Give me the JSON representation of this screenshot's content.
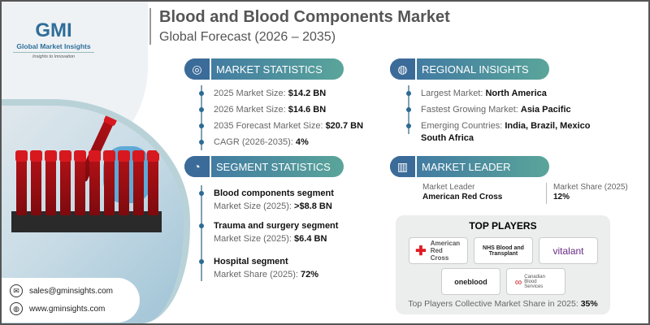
{
  "brand": {
    "logo_text": "GMI",
    "name": "Global Market Insights",
    "tagline": "Insights to Innovation"
  },
  "header": {
    "title": "Blood and Blood Components Market",
    "subtitle": "Global Forecast (2026 – 2035)"
  },
  "market_statistics": {
    "heading": "MARKET STATISTICS",
    "icon": "globe-chart-icon",
    "items": [
      {
        "label": "2025 Market Size: ",
        "value": "$14.2 BN"
      },
      {
        "label": "2026 Market Size: ",
        "value": "$14.6 BN"
      },
      {
        "label": "2035 Forecast Market Size: ",
        "value": "$20.7 BN"
      },
      {
        "label": "CAGR (2026-2035): ",
        "value": "4%"
      }
    ]
  },
  "segment_statistics": {
    "heading": "SEGMENT STATISTICS",
    "icon": "segment-chart-icon",
    "items": [
      {
        "name": "Blood components segment",
        "label": "Market Size (2025): ",
        "value": ">$8.8 BN"
      },
      {
        "name": "Trauma and surgery segment",
        "label": "Market Size (2025): ",
        "value": "$6.4 BN"
      },
      {
        "name": "Hospital segment",
        "label": "Market Share (2025): ",
        "value": "72%"
      }
    ]
  },
  "regional_insights": {
    "heading": "REGIONAL INSIGHTS",
    "icon": "globe-icon",
    "items": [
      {
        "label": "Largest Market: ",
        "value": "North America"
      },
      {
        "label": "Fastest Growing Market: ",
        "value": "Asia Pacific"
      },
      {
        "label": "Emerging Countries: ",
        "value": "India, Brazil, Mexico",
        "value2": "South Africa"
      }
    ]
  },
  "market_leader": {
    "heading": "MARKET LEADER",
    "icon": "bar-chart-icon",
    "leader_label": "Market Leader",
    "leader": "American Red Cross",
    "share_label": "Market Share (2025)",
    "share": "12%"
  },
  "top_players": {
    "heading": "TOP PLAYERS",
    "players": [
      "American Red Cross",
      "NHS Blood and Transplant",
      "vitalant",
      "oneblood",
      "Canadian Blood Services"
    ],
    "footer_label": "Top Players Collective Market Share in 2025: ",
    "footer_value": "35%"
  },
  "contact": {
    "email": "sales@gminsights.com",
    "website": "www.gminsights.com"
  },
  "colors": {
    "pill_start": "#3d73a3",
    "pill_end": "#5aa59a",
    "bullet": "#2b6b96",
    "blood": "#b01116"
  }
}
